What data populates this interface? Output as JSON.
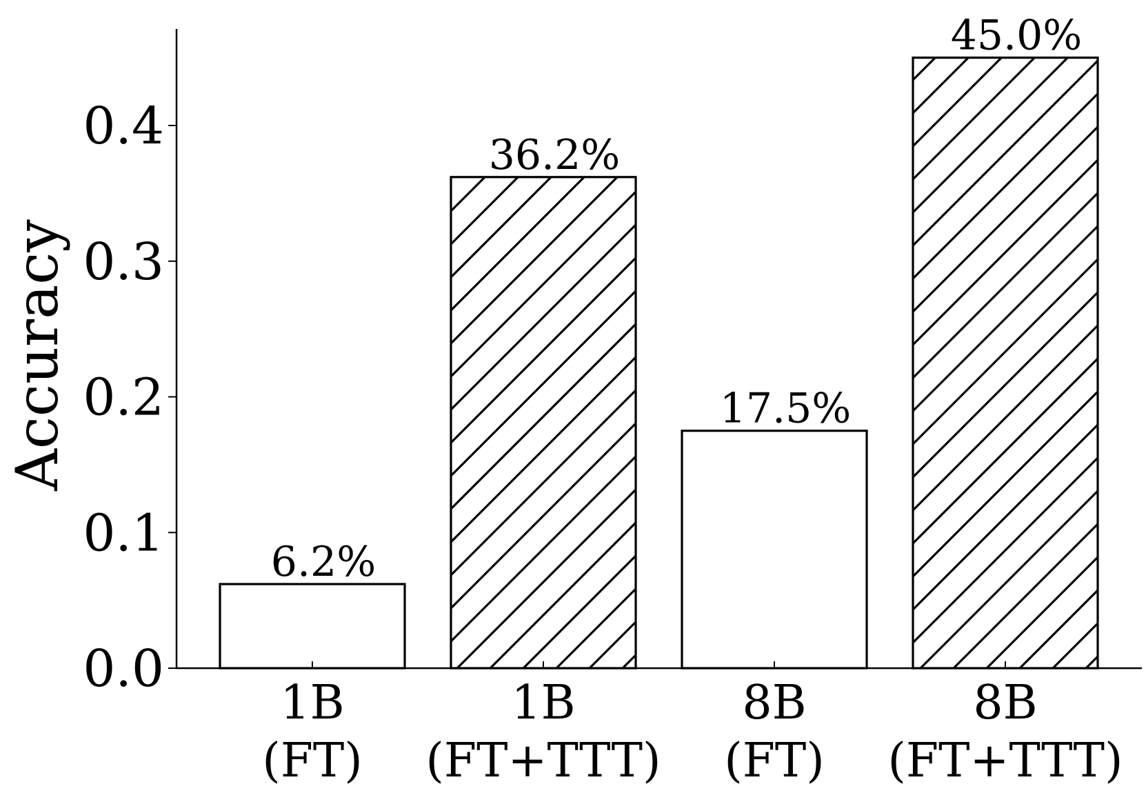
{
  "chart_data": {
    "type": "bar",
    "title": "",
    "xlabel": "",
    "ylabel": "Accuracy",
    "ylim": [
      0,
      0.47
    ],
    "yticks": [
      {
        "value": 0.0,
        "label": "0.0"
      },
      {
        "value": 0.1,
        "label": "0.1"
      },
      {
        "value": 0.2,
        "label": "0.2"
      },
      {
        "value": 0.3,
        "label": "0.3"
      },
      {
        "value": 0.4,
        "label": "0.4"
      }
    ],
    "categories": [
      {
        "line1": "1B",
        "line2": "(FT)"
      },
      {
        "line1": "1B",
        "line2": "(FT+TTT)"
      },
      {
        "line1": "8B",
        "line2": "(FT)"
      },
      {
        "line1": "8B",
        "line2": "(FT+TTT)"
      }
    ],
    "values": [
      0.062,
      0.362,
      0.175,
      0.45
    ],
    "value_labels": [
      "6.2%",
      "36.2%",
      "17.5%",
      "45.0%"
    ],
    "hatched": [
      false,
      true,
      false,
      true
    ],
    "grid": false,
    "colors": {
      "bar_fill": "#ffffff",
      "bar_edge": "#000000",
      "hatch": "#000000"
    }
  }
}
